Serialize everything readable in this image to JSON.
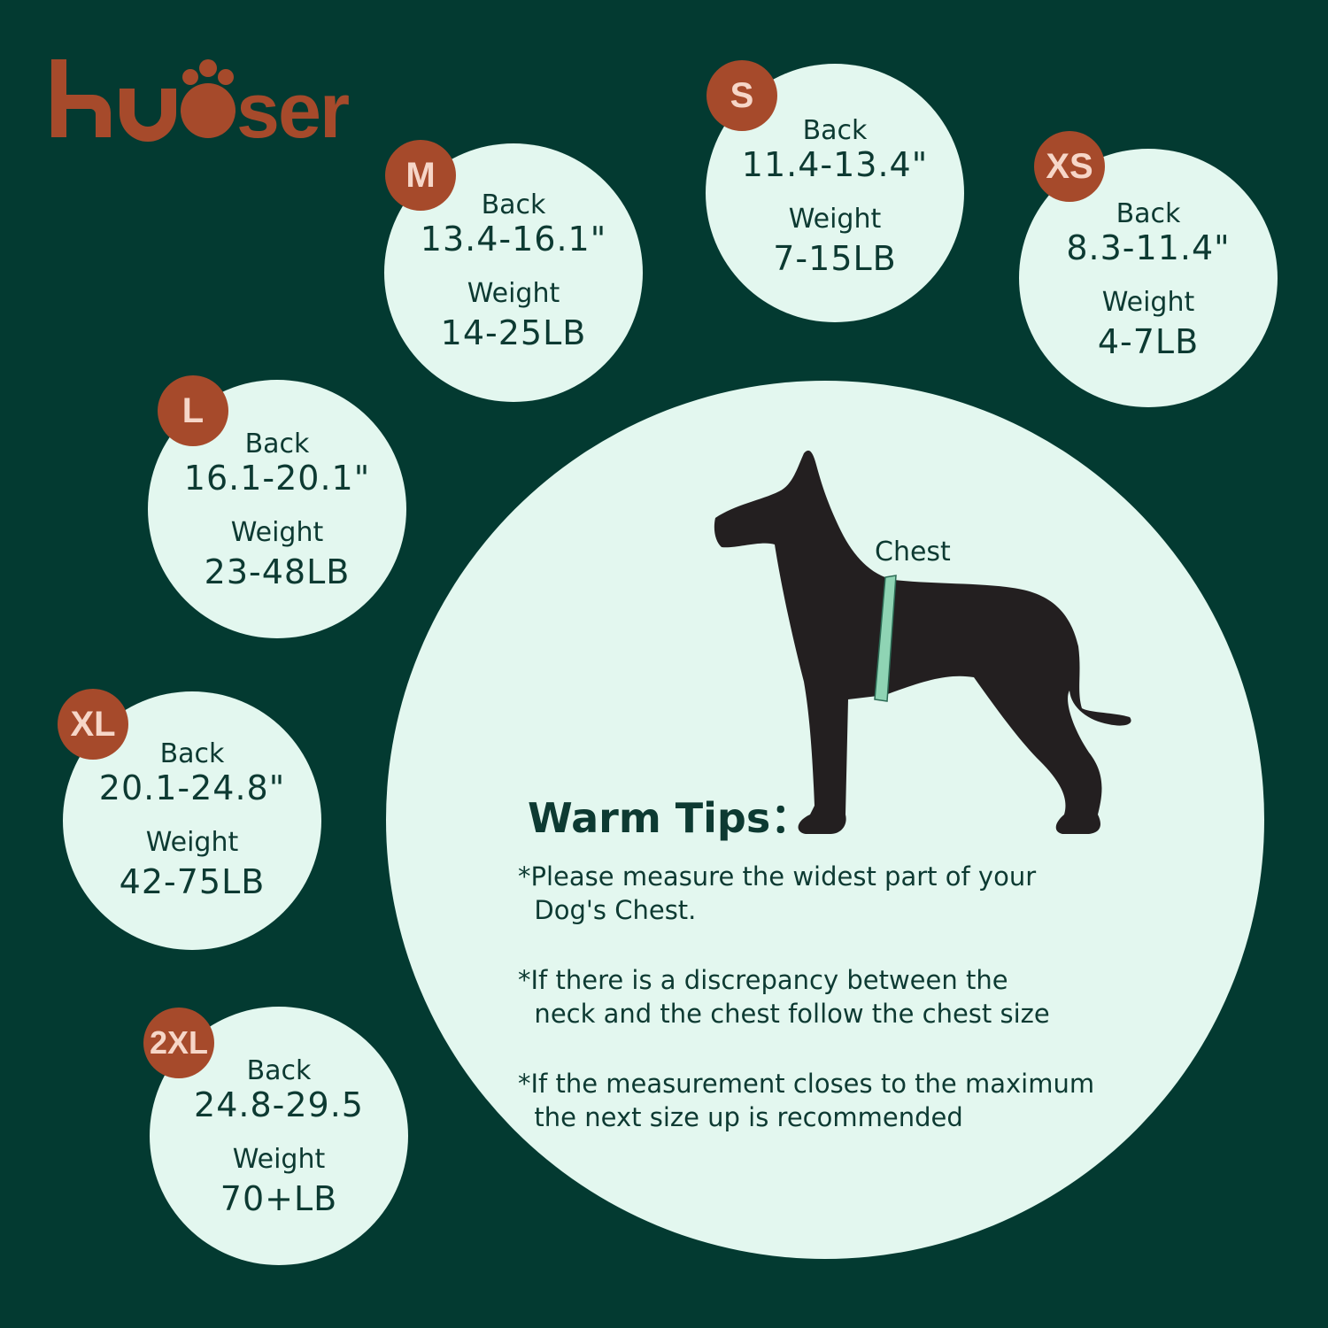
{
  "brand": {
    "logo_text": "kuoser",
    "logo_color": "#a64a2b"
  },
  "colors": {
    "background": "#033a31",
    "circle": "#e3f7ef",
    "badge": "#a64a2b",
    "text": "#0d3a32"
  },
  "sizes": [
    {
      "size": "M",
      "back_label": "Back",
      "back": "13.4-16.1\"",
      "weight_label": "Weight",
      "weight": "14-25LB"
    },
    {
      "size": "S",
      "back_label": "Back",
      "back": "11.4-13.4\"",
      "weight_label": "Weight",
      "weight": "7-15LB"
    },
    {
      "size": "XS",
      "back_label": "Back",
      "back": "8.3-11.4\"",
      "weight_label": "Weight",
      "weight": "4-7LB"
    },
    {
      "size": "L",
      "back_label": "Back",
      "back": "16.1-20.1\"",
      "weight_label": "Weight",
      "weight": "23-48LB"
    },
    {
      "size": "XL",
      "back_label": "Back",
      "back": "20.1-24.8\"",
      "weight_label": "Weight",
      "weight": "42-75LB"
    },
    {
      "size": "2XL",
      "back_label": "Back",
      "back": "24.8-29.5",
      "weight_label": "Weight",
      "weight": "70+LB"
    }
  ],
  "diagram": {
    "chest_label": "Chest"
  },
  "tips": {
    "title": "Warm Tips：",
    "items": [
      "*Please measure the widest part of your\n  Dog's Chest.",
      "*If there is a discrepancy between the\n  neck and the chest follow the chest size",
      "*If the measurement closes to the maximum\n  the next size up is recommended"
    ]
  }
}
